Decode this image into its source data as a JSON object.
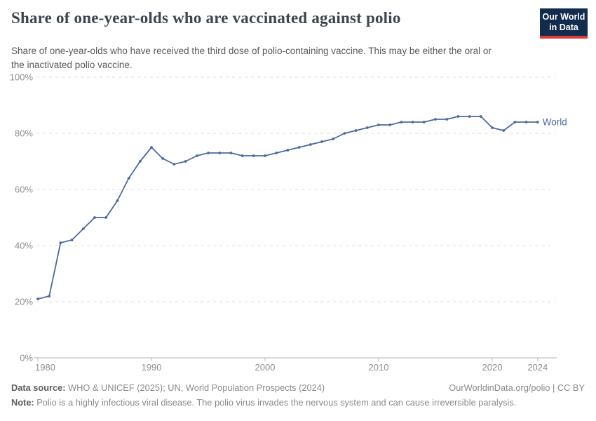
{
  "header": {
    "title": "Share of one-year-olds who are vaccinated against polio",
    "subtitle": "Share of one-year-olds who have received the third dose of polio-containing vaccine. This may be either the oral or the inactivated polio vaccine.",
    "logo": {
      "line1": "Our World",
      "line2": "in Data",
      "bg_color": "#132c4d",
      "bar_color": "#dc3d33"
    }
  },
  "chart_data": {
    "type": "line",
    "title": "Share of one-year-olds who are vaccinated against polio",
    "xlabel": "",
    "ylabel": "",
    "xlim": [
      1980,
      2024
    ],
    "ylim": [
      0,
      100
    ],
    "grid": "horizontal-dashed",
    "x_ticks": [
      1980,
      1990,
      2000,
      2010,
      2020,
      2024
    ],
    "x_tick_labels": [
      "1980",
      "1990",
      "2000",
      "2010",
      "2020",
      "2024"
    ],
    "y_ticks": [
      0,
      20,
      40,
      60,
      80,
      100
    ],
    "y_tick_labels": [
      "0%",
      "20%",
      "40%",
      "60%",
      "80%",
      "100%"
    ],
    "series": [
      {
        "name": "World",
        "color": "#4c6a9c",
        "x": [
          1980,
          1981,
          1982,
          1983,
          1984,
          1985,
          1986,
          1987,
          1988,
          1989,
          1990,
          1991,
          1992,
          1993,
          1994,
          1995,
          1996,
          1997,
          1998,
          1999,
          2000,
          2001,
          2002,
          2003,
          2004,
          2005,
          2006,
          2007,
          2008,
          2009,
          2010,
          2011,
          2012,
          2013,
          2014,
          2015,
          2016,
          2017,
          2018,
          2019,
          2020,
          2021,
          2022,
          2023,
          2024
        ],
        "values": [
          21,
          22,
          41,
          42,
          46,
          50,
          50,
          56,
          64,
          70,
          75,
          71,
          69,
          70,
          72,
          73,
          73,
          73,
          72,
          72,
          72,
          73,
          74,
          75,
          76,
          77,
          78,
          80,
          81,
          82,
          83,
          83,
          84,
          84,
          84,
          85,
          85,
          86,
          86,
          86,
          82,
          81,
          84,
          84,
          84
        ]
      }
    ],
    "end_label": "World",
    "legend_position": "end-of-line",
    "colors": {
      "gridline": "#dedede",
      "axis": "#b5b5b5",
      "tick_label": "#8f8f8f"
    }
  },
  "footer": {
    "datasource_label": "Data source:",
    "datasource": "WHO & UNICEF (2025); UN, World Population Prospects (2024)",
    "link": "OurWorldinData.org/polio | CC BY",
    "note_label": "Note:",
    "note": "Polio is a highly infectious viral disease. The polio virus invades the nervous system and can cause irreversible paralysis."
  }
}
